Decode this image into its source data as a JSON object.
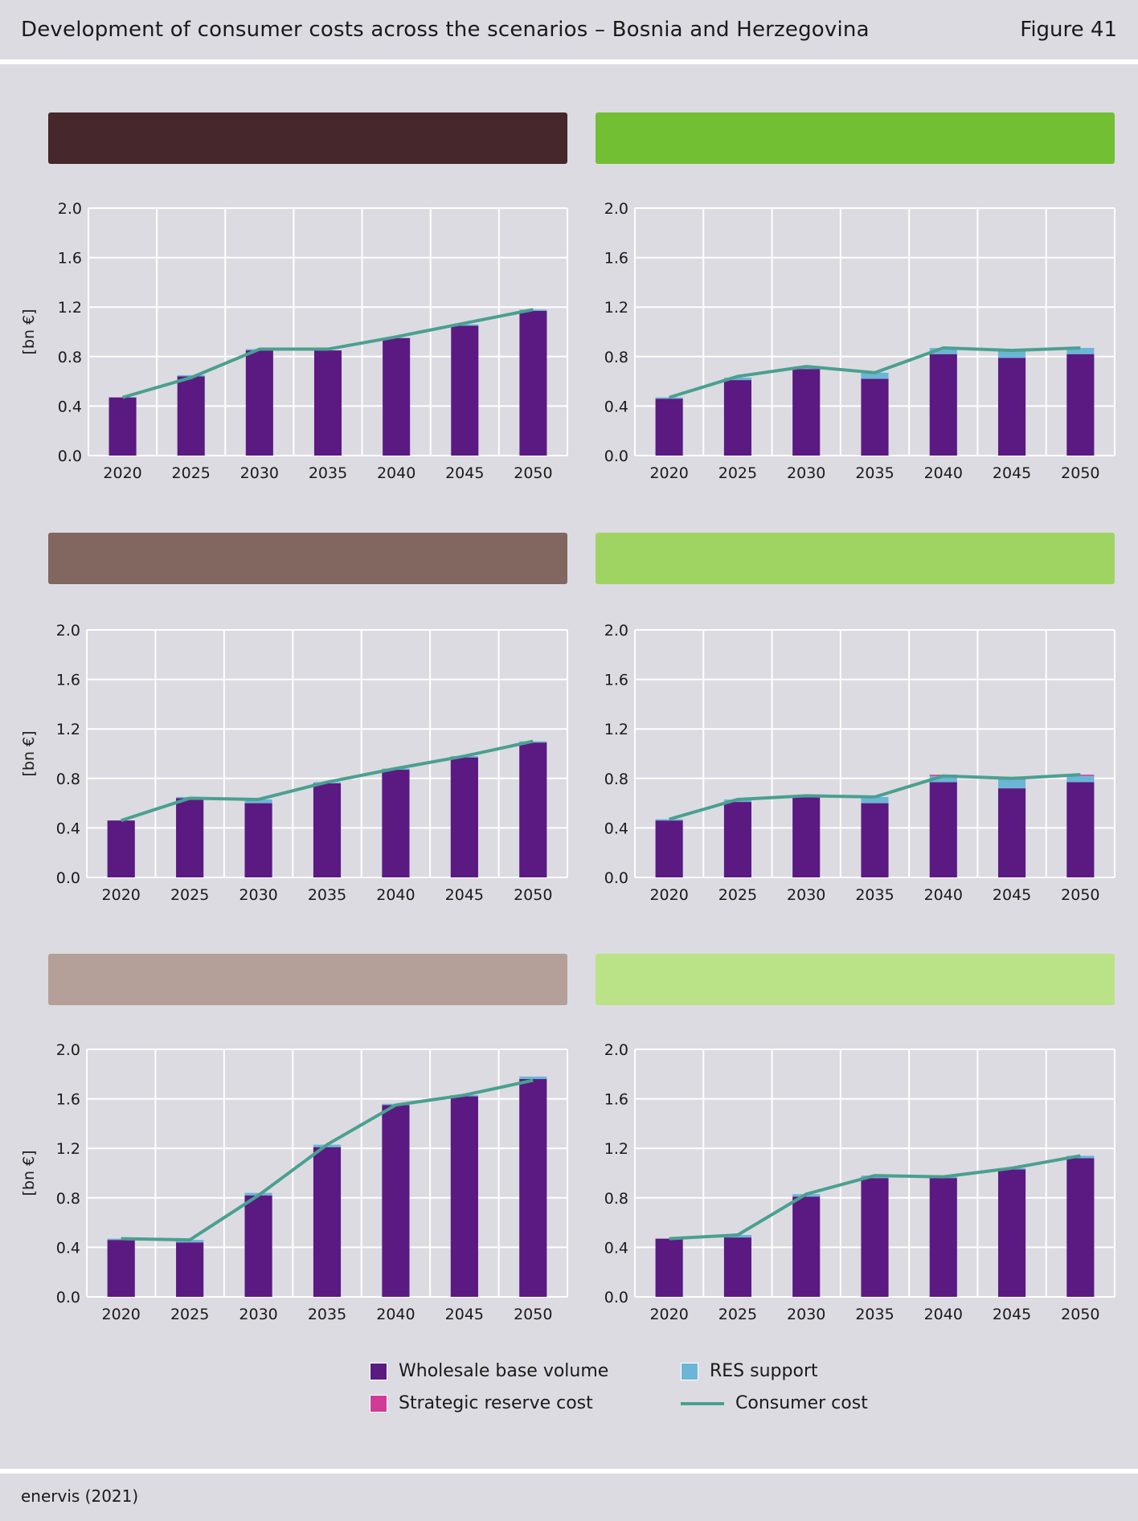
{
  "header": {
    "title": "Development of consumer costs across the scenarios – Bosnia and Herzegovina",
    "figure": "Figure 41"
  },
  "footer": {
    "source": "enervis (2021)"
  },
  "colors": {
    "wholesale": "#5a1a82",
    "res": "#6bb6d6",
    "strategic": "#d13a96",
    "consumer_line": "#4aa08f",
    "grid": "#ffffff"
  },
  "legend": {
    "wholesale": "Wholesale base volume",
    "res": "RES support",
    "strategic": "Strategic reserve cost",
    "consumer": "Consumer cost"
  },
  "chart_data": [
    {
      "type": "bar",
      "banner_color": "#46272b",
      "categories": [
        "2020",
        "2025",
        "2030",
        "2035",
        "2040",
        "2045",
        "2050"
      ],
      "ylim": [
        0,
        2.0
      ],
      "yticks": [
        "0.0",
        "0.4",
        "0.8",
        "1.2",
        "1.6",
        "2.0"
      ],
      "ylabel": "[bn €]",
      "series": [
        {
          "key": "wholesale",
          "values": [
            0.47,
            0.64,
            0.85,
            0.85,
            0.95,
            1.05,
            1.17
          ]
        },
        {
          "key": "res",
          "values": [
            0.0,
            0.01,
            0.01,
            0.0,
            0.0,
            0.01,
            0.01
          ]
        },
        {
          "key": "strategic",
          "values": [
            0,
            0,
            0,
            0,
            0,
            0,
            0
          ]
        },
        {
          "key": "consumer",
          "kind": "line",
          "values": [
            0.47,
            0.63,
            0.86,
            0.86,
            0.96,
            1.07,
            1.18
          ]
        }
      ]
    },
    {
      "type": "bar",
      "banner_color": "#72bf33",
      "categories": [
        "2020",
        "2025",
        "2030",
        "2035",
        "2040",
        "2045",
        "2050"
      ],
      "ylim": [
        0,
        2.0
      ],
      "yticks": [
        "0.0",
        "0.4",
        "0.8",
        "1.2",
        "1.6",
        "2.0"
      ],
      "ylabel": "",
      "series": [
        {
          "key": "wholesale",
          "values": [
            0.46,
            0.61,
            0.7,
            0.62,
            0.82,
            0.79,
            0.82
          ]
        },
        {
          "key": "res",
          "values": [
            0.01,
            0.02,
            0.01,
            0.05,
            0.05,
            0.06,
            0.05
          ]
        },
        {
          "key": "strategic",
          "values": [
            0,
            0,
            0,
            0,
            0,
            0,
            0
          ]
        },
        {
          "key": "consumer",
          "kind": "line",
          "values": [
            0.47,
            0.64,
            0.72,
            0.67,
            0.87,
            0.85,
            0.87
          ]
        }
      ]
    },
    {
      "type": "bar",
      "banner_color": "#826660",
      "categories": [
        "2020",
        "2025",
        "2030",
        "2035",
        "2040",
        "2045",
        "2050"
      ],
      "ylim": [
        0,
        2.0
      ],
      "yticks": [
        "0.0",
        "0.4",
        "0.8",
        "1.2",
        "1.6",
        "2.0"
      ],
      "ylabel": "[bn €]",
      "series": [
        {
          "key": "wholesale",
          "values": [
            0.46,
            0.64,
            0.6,
            0.76,
            0.87,
            0.97,
            1.09
          ]
        },
        {
          "key": "res",
          "values": [
            0.0,
            0.01,
            0.03,
            0.01,
            0.01,
            0.01,
            0.01
          ]
        },
        {
          "key": "strategic",
          "values": [
            0,
            0,
            0,
            0,
            0,
            0,
            0
          ]
        },
        {
          "key": "consumer",
          "kind": "line",
          "values": [
            0.46,
            0.64,
            0.63,
            0.77,
            0.88,
            0.98,
            1.1
          ]
        }
      ]
    },
    {
      "type": "bar",
      "banner_color": "#9fd462",
      "categories": [
        "2020",
        "2025",
        "2030",
        "2035",
        "2040",
        "2045",
        "2050"
      ],
      "ylim": [
        0,
        2.0
      ],
      "yticks": [
        "0.0",
        "0.4",
        "0.8",
        "1.2",
        "1.6",
        "2.0"
      ],
      "ylabel": "",
      "series": [
        {
          "key": "wholesale",
          "values": [
            0.46,
            0.61,
            0.65,
            0.6,
            0.77,
            0.72,
            0.77
          ]
        },
        {
          "key": "res",
          "values": [
            0.01,
            0.02,
            0.01,
            0.05,
            0.05,
            0.07,
            0.05
          ]
        },
        {
          "key": "strategic",
          "values": [
            0,
            0,
            0,
            0,
            0.01,
            0.01,
            0.01
          ]
        },
        {
          "key": "consumer",
          "kind": "line",
          "values": [
            0.47,
            0.63,
            0.66,
            0.65,
            0.82,
            0.8,
            0.83
          ]
        }
      ]
    },
    {
      "type": "bar",
      "banner_color": "#b4a098",
      "categories": [
        "2020",
        "2025",
        "2030",
        "2035",
        "2040",
        "2045",
        "2050"
      ],
      "ylim": [
        0,
        2.0
      ],
      "yticks": [
        "0.0",
        "0.4",
        "0.8",
        "1.2",
        "1.6",
        "2.0"
      ],
      "ylabel": "[bn €]",
      "series": [
        {
          "key": "wholesale",
          "values": [
            0.46,
            0.44,
            0.82,
            1.21,
            1.55,
            1.62,
            1.76
          ]
        },
        {
          "key": "res",
          "values": [
            0.01,
            0.02,
            0.02,
            0.02,
            0.01,
            0.01,
            0.02
          ]
        },
        {
          "key": "strategic",
          "values": [
            0,
            0,
            0,
            0,
            0,
            0,
            0
          ]
        },
        {
          "key": "consumer",
          "kind": "line",
          "values": [
            0.47,
            0.46,
            0.82,
            1.23,
            1.55,
            1.63,
            1.75
          ]
        }
      ]
    },
    {
      "type": "bar",
      "banner_color": "#bae388",
      "categories": [
        "2020",
        "2025",
        "2030",
        "2035",
        "2040",
        "2045",
        "2050"
      ],
      "ylim": [
        0,
        2.0
      ],
      "yticks": [
        "0.0",
        "0.4",
        "0.8",
        "1.2",
        "1.6",
        "2.0"
      ],
      "ylabel": "",
      "series": [
        {
          "key": "wholesale",
          "values": [
            0.47,
            0.48,
            0.81,
            0.96,
            0.96,
            1.03,
            1.12
          ]
        },
        {
          "key": "res",
          "values": [
            0.0,
            0.02,
            0.02,
            0.02,
            0.01,
            0.01,
            0.02
          ]
        },
        {
          "key": "strategic",
          "values": [
            0,
            0,
            0,
            0,
            0,
            0,
            0
          ]
        },
        {
          "key": "consumer",
          "kind": "line",
          "values": [
            0.47,
            0.5,
            0.83,
            0.98,
            0.97,
            1.04,
            1.14
          ]
        }
      ]
    }
  ]
}
